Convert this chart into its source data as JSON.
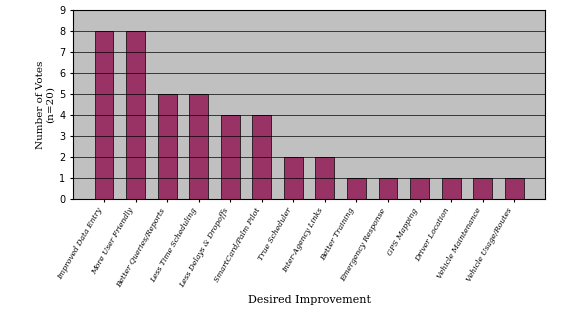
{
  "categories": [
    "Improved Data Entry",
    "More User Friendly",
    "Better Queries/Reports",
    "Less Time Scheduling",
    "Less Delays & Dropoffs",
    "SmartCard/Palm Pilot",
    "True Scheduler",
    "Inter-Agency Links",
    "Better Training",
    "Emergency Response",
    "GPS Mapping",
    "Driver Location",
    "Vehicle Maintenance",
    "Vehicle Usage/Routes"
  ],
  "values": [
    8,
    8,
    5,
    5,
    4,
    4,
    2,
    2,
    1,
    1,
    1,
    1,
    1,
    1
  ],
  "bar_color": "#993366",
  "ylabel_line1": "Number of Votes",
  "ylabel_line2": "(n=20)",
  "xlabel": "Desired Improvement",
  "ylim": [
    0,
    9
  ],
  "yticks": [
    0,
    1,
    2,
    3,
    4,
    5,
    6,
    7,
    8,
    9
  ],
  "fig_facecolor": "#ffffff",
  "plot_bg_color": "#c0c0c0",
  "grid_color": "#000000",
  "bar_edgecolor": "#000000"
}
